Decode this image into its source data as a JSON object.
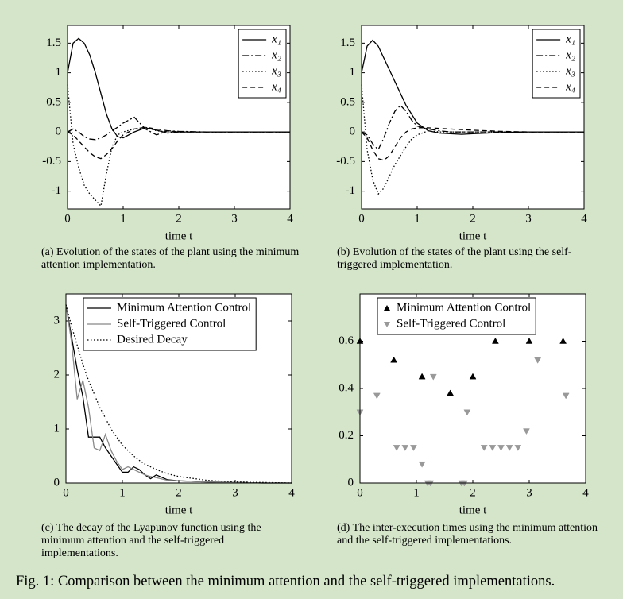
{
  "chart_data": [
    {
      "type": "line",
      "caption": "(a) Evolution of the states of the plant using the minimum attention implementation.",
      "xlabel": "time t",
      "xlim": [
        0,
        4
      ],
      "xticks": [
        0,
        1,
        2,
        3,
        4
      ],
      "ylim": [
        -1.3,
        1.8
      ],
      "yticks": [
        -1,
        -0.5,
        0,
        0.5,
        1,
        1.5
      ],
      "legend": "upper right",
      "x": [
        0,
        0.1,
        0.2,
        0.3,
        0.4,
        0.5,
        0.6,
        0.7,
        0.8,
        0.9,
        1.0,
        1.2,
        1.4,
        1.6,
        1.8,
        2.0,
        2.5,
        3,
        3.5,
        4
      ],
      "series": [
        {
          "name": "x₁",
          "color": "#000000",
          "dash": "solid",
          "values": [
            1.0,
            1.5,
            1.58,
            1.5,
            1.3,
            1.0,
            0.65,
            0.3,
            0.05,
            -0.08,
            -0.1,
            0.0,
            0.07,
            0.03,
            -0.02,
            0,
            0,
            0,
            0,
            0
          ]
        },
        {
          "name": "x₂",
          "color": "#000000",
          "dash": "dashdot",
          "values": [
            0,
            0.05,
            0,
            -0.08,
            -0.12,
            -0.13,
            -0.1,
            -0.05,
            0.02,
            0.08,
            0.15,
            0.25,
            0.05,
            -0.05,
            0.02,
            0.01,
            0,
            0,
            0,
            0
          ]
        },
        {
          "name": "x₃",
          "color": "#000000",
          "dash": "dotted",
          "values": [
            0.8,
            -0.2,
            -0.6,
            -0.9,
            -1.05,
            -1.15,
            -1.25,
            -0.7,
            -0.25,
            -0.05,
            0,
            0.05,
            0.08,
            0.02,
            0,
            0,
            0,
            0,
            0,
            0
          ]
        },
        {
          "name": "x₄",
          "color": "#000000",
          "dash": "dashed",
          "values": [
            0,
            -0.05,
            -0.15,
            -0.25,
            -0.35,
            -0.42,
            -0.45,
            -0.38,
            -0.28,
            -0.15,
            -0.05,
            0.05,
            0.08,
            0.05,
            0.02,
            0,
            0,
            0,
            0,
            0
          ]
        }
      ]
    },
    {
      "type": "line",
      "caption": "(b) Evolution of the states of the plant using the self-triggered implementation.",
      "xlabel": "time t",
      "xlim": [
        0,
        4
      ],
      "xticks": [
        0,
        1,
        2,
        3,
        4
      ],
      "ylim": [
        -1.3,
        1.8
      ],
      "yticks": [
        -1,
        -0.5,
        0,
        0.5,
        1,
        1.5
      ],
      "legend": "upper right",
      "x": [
        0,
        0.1,
        0.2,
        0.3,
        0.4,
        0.5,
        0.6,
        0.7,
        0.8,
        0.9,
        1.0,
        1.2,
        1.4,
        1.6,
        1.8,
        2.0,
        2.5,
        3,
        3.5,
        4
      ],
      "series": [
        {
          "name": "x₁",
          "color": "#000000",
          "dash": "solid",
          "values": [
            1.0,
            1.45,
            1.55,
            1.45,
            1.25,
            1.05,
            0.85,
            0.65,
            0.45,
            0.3,
            0.15,
            0.02,
            -0.02,
            -0.03,
            -0.04,
            -0.03,
            -0.01,
            0,
            0,
            0
          ]
        },
        {
          "name": "x₂",
          "color": "#000000",
          "dash": "dashdot",
          "values": [
            0,
            -0.05,
            -0.2,
            -0.3,
            -0.1,
            0.15,
            0.35,
            0.45,
            0.35,
            0.2,
            0.1,
            0.05,
            0.02,
            0,
            0,
            0,
            0,
            0,
            0,
            0
          ]
        },
        {
          "name": "x₃",
          "color": "#000000",
          "dash": "dotted",
          "values": [
            0.8,
            -0.3,
            -0.8,
            -1.05,
            -0.95,
            -0.75,
            -0.55,
            -0.4,
            -0.25,
            -0.12,
            -0.05,
            0.02,
            0,
            0,
            0,
            0,
            0,
            0,
            0,
            0
          ]
        },
        {
          "name": "x₄",
          "color": "#000000",
          "dash": "dashed",
          "values": [
            0,
            -0.1,
            -0.3,
            -0.45,
            -0.48,
            -0.4,
            -0.25,
            -0.1,
            0,
            0.05,
            0.07,
            0.07,
            0.06,
            0.05,
            0.04,
            0.03,
            0.01,
            0,
            0,
            0
          ]
        }
      ]
    },
    {
      "type": "line",
      "caption": "(c) The decay of the Lyapunov function using the minimum attention and the self-triggered implementations.",
      "xlabel": "time t",
      "xlim": [
        0,
        4
      ],
      "xticks": [
        0,
        1,
        2,
        3,
        4
      ],
      "ylim": [
        0,
        3.5
      ],
      "yticks": [
        0,
        1,
        2,
        3
      ],
      "legend": "upper left",
      "x": [
        0,
        0.1,
        0.2,
        0.3,
        0.4,
        0.5,
        0.6,
        0.7,
        0.8,
        0.9,
        1.0,
        1.1,
        1.2,
        1.3,
        1.4,
        1.5,
        1.6,
        1.8,
        2.0,
        2.5,
        3,
        3.5,
        4
      ],
      "series": [
        {
          "name": "Minimum Attention Control",
          "color": "#000000",
          "dash": "solid",
          "values": [
            3.3,
            2.7,
            2.1,
            1.6,
            0.85,
            0.85,
            0.85,
            0.65,
            0.5,
            0.35,
            0.2,
            0.2,
            0.3,
            0.25,
            0.15,
            0.08,
            0.15,
            0.06,
            0.04,
            0.02,
            0.01,
            0,
            0
          ]
        },
        {
          "name": "Self-Triggered Control",
          "color": "#888888",
          "dash": "solid",
          "values": [
            3.3,
            2.6,
            1.55,
            1.9,
            1.4,
            0.65,
            0.6,
            0.9,
            0.6,
            0.4,
            0.25,
            0.3,
            0.25,
            0.2,
            0.15,
            0.12,
            0.1,
            0.05,
            0.04,
            0.02,
            0.01,
            0,
            0
          ]
        },
        {
          "name": "Desired Decay",
          "color": "#000000",
          "dash": "dotted",
          "values": [
            3.3,
            2.9,
            2.55,
            2.2,
            1.9,
            1.65,
            1.4,
            1.2,
            1.0,
            0.85,
            0.7,
            0.6,
            0.5,
            0.42,
            0.35,
            0.3,
            0.25,
            0.17,
            0.12,
            0.05,
            0.02,
            0.01,
            0
          ]
        }
      ]
    },
    {
      "type": "scatter",
      "caption": "(d) The inter-execution times using the minimum attention and the self-triggered implementations.",
      "xlabel": "time t",
      "xlim": [
        0,
        4
      ],
      "xticks": [
        0,
        1,
        2,
        3,
        4
      ],
      "ylim": [
        0,
        0.8
      ],
      "yticks": [
        0,
        0.2,
        0.4,
        0.6
      ],
      "legend": "upper left",
      "series": [
        {
          "name": "Minimum Attention Control",
          "color": "#000000",
          "marker": "triangle-up",
          "x": [
            0,
            0.6,
            1.1,
            1.6,
            2.0,
            2.4,
            3.0,
            3.6
          ],
          "values": [
            0.6,
            0.52,
            0.45,
            0.38,
            0.45,
            0.6,
            0.6,
            0.6
          ]
        },
        {
          "name": "Self-Triggered Control",
          "color": "#999999",
          "marker": "triangle-down",
          "x": [
            0,
            0.3,
            0.65,
            0.8,
            0.95,
            1.1,
            1.2,
            1.25,
            1.3,
            1.8,
            1.85,
            1.9,
            2.2,
            2.35,
            2.5,
            2.65,
            2.8,
            2.95,
            3.15,
            3.65
          ],
          "values": [
            0.3,
            0.37,
            0.15,
            0.15,
            0.15,
            0.08,
            0,
            0,
            0.45,
            0,
            0,
            0.3,
            0.15,
            0.15,
            0.15,
            0.15,
            0.15,
            0.22,
            0.52,
            0.37
          ]
        }
      ]
    }
  ],
  "figure_caption": "Fig. 1: Comparison between the minimum attention and the self-triggered implementations."
}
